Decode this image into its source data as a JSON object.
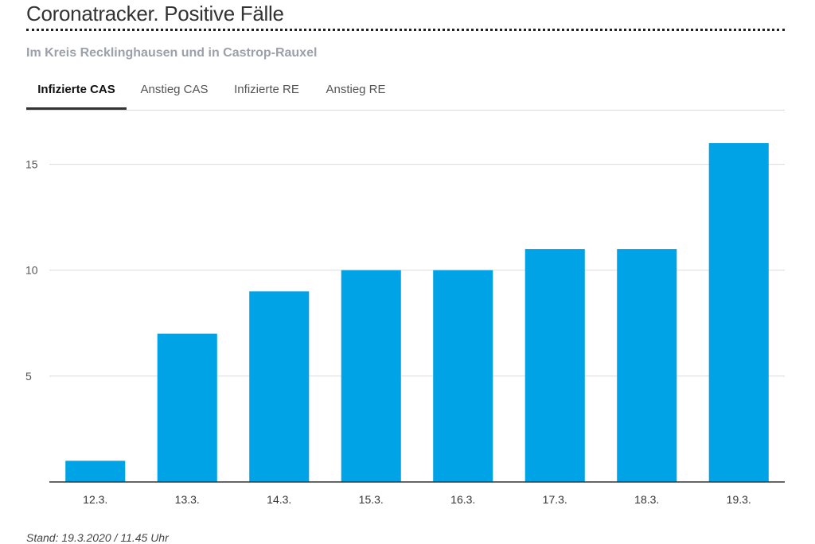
{
  "header": {
    "title": "Coronatracker. Positive Fälle",
    "subtitle": "Im Kreis Recklinghausen und in Castrop-Rauxel"
  },
  "tabs": [
    {
      "label": "Infizierte CAS",
      "active": true
    },
    {
      "label": "Anstieg CAS",
      "active": false
    },
    {
      "label": "Infizierte RE",
      "active": false
    },
    {
      "label": "Anstieg RE",
      "active": false
    }
  ],
  "colors": {
    "bar": "#00a3e6",
    "grid": "#dcdcdc",
    "axis": "#333333"
  },
  "chart_data": {
    "type": "bar",
    "title": "",
    "xlabel": "",
    "ylabel": "",
    "categories": [
      "12.3.",
      "13.3.",
      "14.3.",
      "15.3.",
      "16.3.",
      "17.3.",
      "18.3.",
      "19.3."
    ],
    "values": [
      1,
      7,
      9,
      10,
      10,
      11,
      11,
      16
    ],
    "ylim": [
      0,
      17.5
    ],
    "yticks": [
      5,
      10,
      15
    ],
    "grid": true
  },
  "footer": {
    "note": "Stand: 19.3.2020 / 11.45 Uhr"
  }
}
